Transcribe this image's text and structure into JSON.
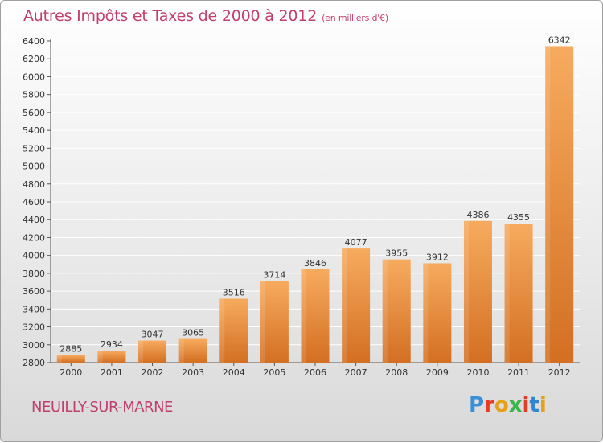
{
  "title": "Autres Impôts et Taxes de 2000 à 2012",
  "subtitle": "(en milliers d'€)",
  "location": "NEUILLY-SUR-MARNE",
  "brand": {
    "letters": [
      "P",
      "r",
      "o",
      "x",
      "i",
      "t",
      "i"
    ],
    "colors": [
      "#3a8fd8",
      "#e53d25",
      "#e8a016",
      "#3bb54a",
      "#e53d25",
      "#2f87d0",
      "#e8a016"
    ]
  },
  "colors": {
    "title": "#c13f6f",
    "bar_light": "#f6a85a",
    "bar_dark": "#d9782a",
    "grid": "#ffffff"
  },
  "chart_data": {
    "type": "bar",
    "title": "Autres Impôts et Taxes de 2000 à 2012",
    "subtitle": "(en milliers d'€)",
    "categories": [
      "2000",
      "2001",
      "2002",
      "2003",
      "2004",
      "2005",
      "2006",
      "2007",
      "2008",
      "2009",
      "2010",
      "2011",
      "2012"
    ],
    "values": [
      2885,
      2934,
      3047,
      3065,
      3516,
      3714,
      3846,
      4077,
      3955,
      3912,
      4386,
      4355,
      6342
    ],
    "ylim": [
      2800,
      6400
    ],
    "yticks": [
      2800,
      3000,
      3200,
      3400,
      3600,
      3800,
      4000,
      4200,
      4400,
      4600,
      4800,
      5000,
      5200,
      5400,
      5600,
      5800,
      6000,
      6200,
      6400
    ],
    "grid": true,
    "data_labels": true,
    "xlabel": "",
    "ylabel": ""
  }
}
